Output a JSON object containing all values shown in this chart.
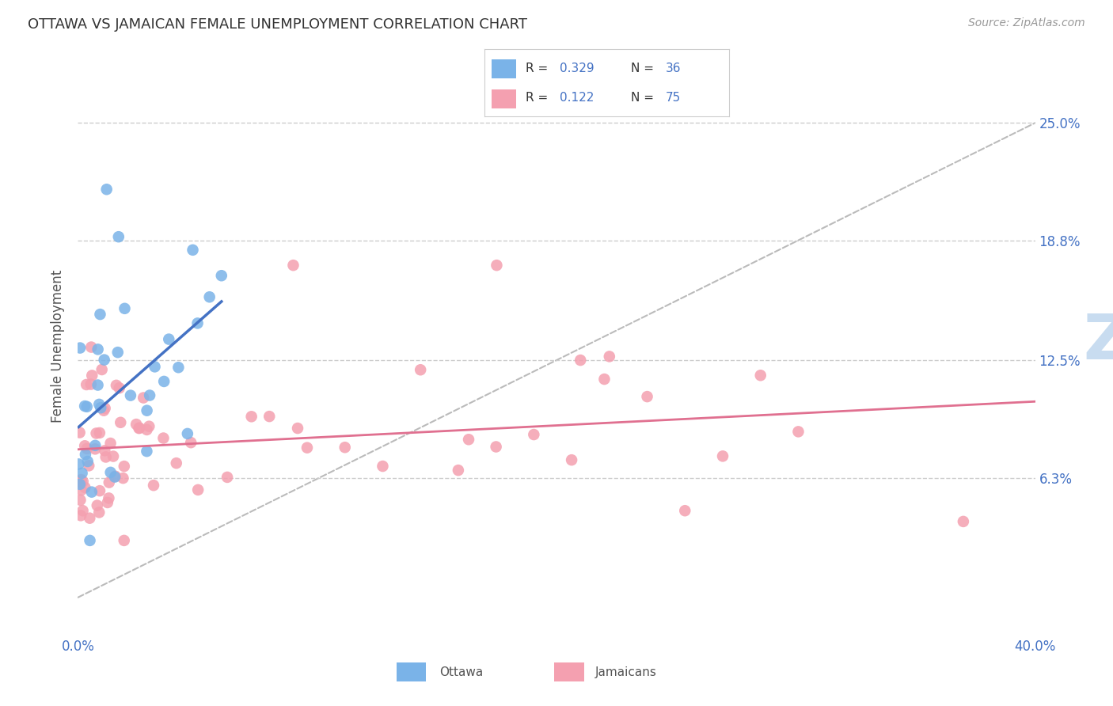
{
  "title": "OTTAWA VS JAMAICAN FEMALE UNEMPLOYMENT CORRELATION CHART",
  "source": "Source: ZipAtlas.com",
  "ylabel": "Female Unemployment",
  "xlim": [
    0.0,
    0.4
  ],
  "ylim": [
    -0.02,
    0.285
  ],
  "yticks": [
    0.063,
    0.125,
    0.188,
    0.25
  ],
  "ytick_labels": [
    "6.3%",
    "12.5%",
    "18.8%",
    "25.0%"
  ],
  "xticks": [
    0.0,
    0.1,
    0.2,
    0.3,
    0.4
  ],
  "xtick_labels": [
    "0.0%",
    "",
    "",
    "",
    "40.0%"
  ],
  "background_color": "#ffffff",
  "title_color": "#333333",
  "axis_label_color": "#555555",
  "tick_color": "#4472c4",
  "ottawa_color": "#7ab3e8",
  "jamaican_color": "#f4a0b0",
  "legend_text_color": "#333333",
  "legend_val_color": "#4472c4",
  "diag_line_color": "#bbbbbb",
  "ottawa_trend_color": "#4472c4",
  "jamaican_trend_color": "#e07090",
  "grid_color": "#cccccc",
  "watermark_zip_color": "#c8dcf0",
  "watermark_atlas_color": "#d8c8e8"
}
